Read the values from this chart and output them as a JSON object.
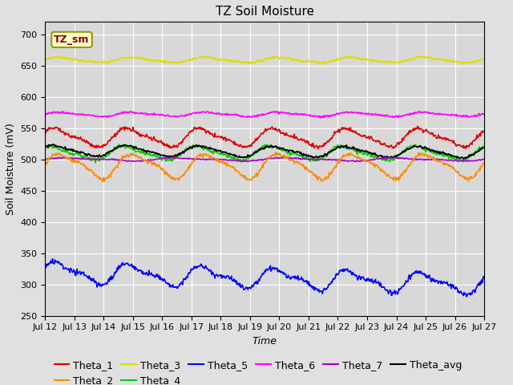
{
  "title": "TZ Soil Moisture",
  "xlabel": "Time",
  "ylabel": "Soil Moisture (mV)",
  "ylim": [
    250,
    720
  ],
  "yticks": [
    250,
    300,
    350,
    400,
    450,
    500,
    550,
    600,
    650,
    700
  ],
  "x_start": 0,
  "x_end": 360,
  "num_points": 720,
  "series": {
    "Theta_1": {
      "color": "#dd0000",
      "base": 535,
      "amp1": 13,
      "amp2": 4,
      "freq1": 0.105,
      "freq2": 0.21,
      "phase1": 0.5,
      "phase2": 1.0,
      "trend": 0.0,
      "noise": 1.5
    },
    "Theta_2": {
      "color": "#ff8800",
      "base": 490,
      "amp1": 18,
      "amp2": 5,
      "freq1": 0.105,
      "freq2": 0.21,
      "phase1": 0.0,
      "phase2": 0.5,
      "trend": 0.0,
      "noise": 1.5
    },
    "Theta_3": {
      "color": "#dddd00",
      "base": 659,
      "amp1": 4,
      "amp2": 1,
      "freq1": 0.105,
      "freq2": 0.21,
      "phase1": 0.2,
      "phase2": 0.0,
      "trend": 0.0,
      "noise": 1.0
    },
    "Theta_4": {
      "color": "#00cc00",
      "base": 510,
      "amp1": 10,
      "amp2": 3,
      "freq1": 0.105,
      "freq2": 0.21,
      "phase1": 0.8,
      "phase2": 1.5,
      "trend": 0.0,
      "noise": 1.5
    },
    "Theta_5": {
      "color": "#0000ff",
      "base": 320,
      "amp1": 14,
      "amp2": 6,
      "freq1": 0.105,
      "freq2": 0.21,
      "phase1": 0.3,
      "phase2": 0.8,
      "trend": -0.055,
      "noise": 2.0
    },
    "Theta_6": {
      "color": "#ff00ff",
      "base": 572,
      "amp1": 3,
      "amp2": 1,
      "freq1": 0.105,
      "freq2": 0.21,
      "phase1": 0.1,
      "phase2": 0.3,
      "trend": 0.0,
      "noise": 0.8
    },
    "Theta_7": {
      "color": "#aa00cc",
      "base": 500,
      "amp1": 2,
      "amp2": 1,
      "freq1": 0.07,
      "freq2": 0.14,
      "phase1": 0.0,
      "phase2": 0.0,
      "trend": 0.0,
      "noise": 0.5
    },
    "Theta_avg": {
      "color": "#000000",
      "base": 514,
      "amp1": 8,
      "amp2": 2,
      "freq1": 0.105,
      "freq2": 0.21,
      "phase1": 0.6,
      "phase2": 1.2,
      "trend": -0.008,
      "noise": 1.0
    }
  },
  "xtick_labels": [
    "Jul 12",
    "Jul 13",
    "Jul 14",
    "Jul 15",
    "Jul 16",
    "Jul 17",
    "Jul 18",
    "Jul 19",
    "Jul 20",
    "Jul 21",
    "Jul 22",
    "Jul 23",
    "Jul 24",
    "Jul 25",
    "Jul 26",
    "Jul 27"
  ],
  "xtick_positions": [
    0,
    24,
    48,
    72,
    96,
    120,
    144,
    168,
    192,
    216,
    240,
    264,
    288,
    312,
    336,
    360
  ],
  "annotation_text": "TZ_sm",
  "bg_color": "#e0e0e0",
  "plot_bg_color": "#d8d8d8",
  "grid_color": "#ffffff",
  "title_fontsize": 11,
  "axis_fontsize": 9,
  "tick_fontsize": 8,
  "legend_fontsize": 9,
  "linewidth": 1.2
}
